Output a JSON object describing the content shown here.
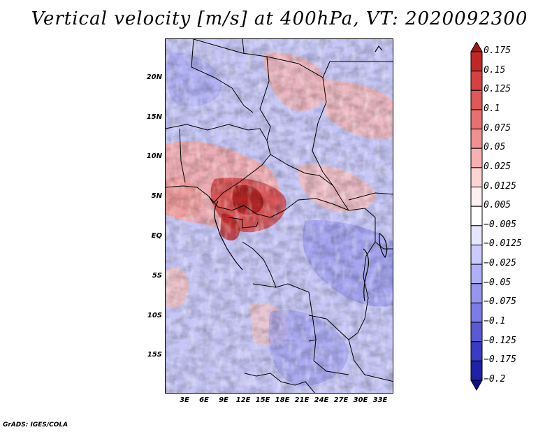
{
  "title": "Vertical velocity [m/s] at 400hPa, VT: 2020092300",
  "credit": "GrADS: IGES/COLA",
  "map": {
    "lat_labels": [
      "20N",
      "15N",
      "10N",
      "5N",
      "EQ",
      "5S",
      "10S",
      "15S"
    ],
    "lon_labels": [
      "3E",
      "6E",
      "9E",
      "12E",
      "15E",
      "18E",
      "21E",
      "24E",
      "27E",
      "30E",
      "33E"
    ]
  },
  "colorbar": {
    "labels": [
      "0.175",
      "0.15",
      "0.125",
      "0.1",
      "0.075",
      "0.05",
      "0.025",
      "0.0125",
      "0.005",
      "−0.005",
      "−0.0125",
      "−0.025",
      "−0.05",
      "−0.075",
      "−0.1",
      "−0.125",
      "−0.175",
      "−0.2"
    ],
    "colors": [
      "#a01818",
      "#c02828",
      "#d84040",
      "#e05858",
      "#e87070",
      "#f09090",
      "#f8b0b0",
      "#fcd4d4",
      "#fff0f0",
      "#ffffff",
      "#e6e6ff",
      "#cacaff",
      "#b0b0f8",
      "#9696f0",
      "#7c7ce8",
      "#5a5ad4",
      "#3a3ac4",
      "#2020a8",
      "#10108a"
    ]
  }
}
